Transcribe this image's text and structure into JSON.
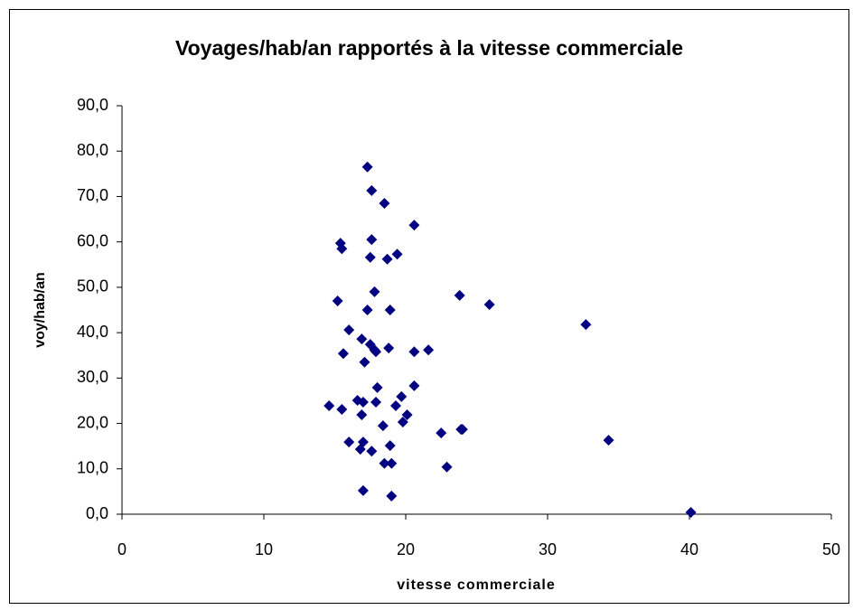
{
  "chart_data": {
    "type": "scatter",
    "title": "Voyages/hab/an rapportés à la vitesse commerciale",
    "x_label": "vitesse commerciale",
    "y_label": "voy/hab/an",
    "color": "#000080",
    "grid": false,
    "xlim": [
      0,
      50
    ],
    "xticks": [
      0,
      10,
      20,
      30,
      40,
      50
    ],
    "ylim": [
      0,
      90
    ],
    "yticks": [
      {
        "value": 0,
        "label": "0,0"
      },
      {
        "value": 10,
        "label": "10,0"
      },
      {
        "value": 20,
        "label": "20,0"
      },
      {
        "value": 30,
        "label": "30,0"
      },
      {
        "value": 40,
        "label": "40,0"
      },
      {
        "value": 50,
        "label": "50,0"
      },
      {
        "value": 60,
        "label": "60,0"
      },
      {
        "value": 70,
        "label": "70,0"
      },
      {
        "value": 80,
        "label": "80,0"
      },
      {
        "value": 90,
        "label": "90,0"
      }
    ],
    "x": [
      17.3,
      17.6,
      18.5,
      20.6,
      15.4,
      15.5,
      17.6,
      19.4,
      17.5,
      18.7,
      17.8,
      23.8,
      25.9,
      32.7,
      15.2,
      17.3,
      18.9,
      16.0,
      16.9,
      17.5,
      17.8,
      17.9,
      18.8,
      20.6,
      21.6,
      15.6,
      17.1,
      20.6,
      18.0,
      19.7,
      16.6,
      17.0,
      17.9,
      14.6,
      15.5,
      19.3,
      20.1,
      16.9,
      19.8,
      18.4,
      22.5,
      23.9,
      24.0,
      34.3,
      16.0,
      17.0,
      18.9,
      16.8,
      17.6,
      18.5,
      19.0,
      22.9,
      17.0,
      19.0,
      40.1
    ],
    "values": [
      76.5,
      71.3,
      68.5,
      63.7,
      59.7,
      58.5,
      60.5,
      57.3,
      56.6,
      56.2,
      49.0,
      48.2,
      46.2,
      41.8,
      47.0,
      45.0,
      45.0,
      40.6,
      38.6,
      37.4,
      36.2,
      35.8,
      36.6,
      35.8,
      36.2,
      35.4,
      33.5,
      28.3,
      27.9,
      25.9,
      25.1,
      24.7,
      24.7,
      23.9,
      23.1,
      23.9,
      21.9,
      21.9,
      20.3,
      19.5,
      17.9,
      18.7,
      18.7,
      16.3,
      15.9,
      15.9,
      15.1,
      14.3,
      13.9,
      11.2,
      11.2,
      10.4,
      5.2,
      4.0,
      0.4
    ]
  }
}
